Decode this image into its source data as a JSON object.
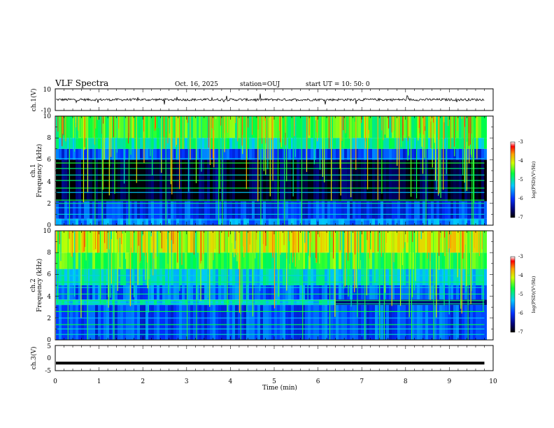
{
  "header": {
    "title": "VLF Spectra",
    "date": "Oct. 16, 2025",
    "station": "station=OUJ",
    "start": "start  UT =   10: 50: 0"
  },
  "chart_data": [
    {
      "type": "line",
      "name": "ch1-waveform",
      "ylabel": "ch.1(V)",
      "ylim": [
        -10,
        10
      ],
      "yticks": [
        "10",
        "-10"
      ],
      "mean": 0,
      "data_end_min": 9.8
    },
    {
      "type": "heatmap",
      "name": "ch1-spectrogram",
      "ylabel_line1": "ch.1",
      "ylabel_line2": "Frequency (kHz)",
      "ylim": [
        0,
        10
      ],
      "yticks": [
        "0",
        "2",
        "4",
        "6",
        "8",
        "10"
      ],
      "z_label": "log(PSD)(V²/Hz)",
      "zlim": [
        -7,
        -3
      ],
      "z_ticks": [
        "-3",
        "-4",
        "-5",
        "-6",
        "-7"
      ]
    },
    {
      "type": "heatmap",
      "name": "ch2-spectrogram",
      "ylabel_line1": "ch.2",
      "ylabel_line2": "Frequency (kHz)",
      "ylim": [
        0,
        10
      ],
      "yticks": [
        "0",
        "2",
        "4",
        "6",
        "8",
        "10"
      ],
      "z_label": "log(PSD)(V²/Hz)",
      "zlim": [
        -7,
        -3
      ],
      "z_ticks": [
        "-3",
        "-4",
        "-5",
        "-6",
        "-7"
      ],
      "band_change_min": 6.4
    },
    {
      "type": "line",
      "name": "ch3-waveform",
      "ylabel": "ch.3(V)",
      "ylim": [
        -5,
        5
      ],
      "yticks": [
        "5",
        "0",
        "-5"
      ],
      "mean": -2,
      "data_end_min": 9.8
    }
  ],
  "xaxis": {
    "xlabel": "Time (min)",
    "xlim": [
      0,
      10
    ],
    "ticks": [
      "0",
      "1",
      "2",
      "3",
      "4",
      "5",
      "6",
      "7",
      "8",
      "9",
      "10"
    ]
  },
  "colors": {
    "axis": "#000000",
    "background": "#ffffff"
  }
}
